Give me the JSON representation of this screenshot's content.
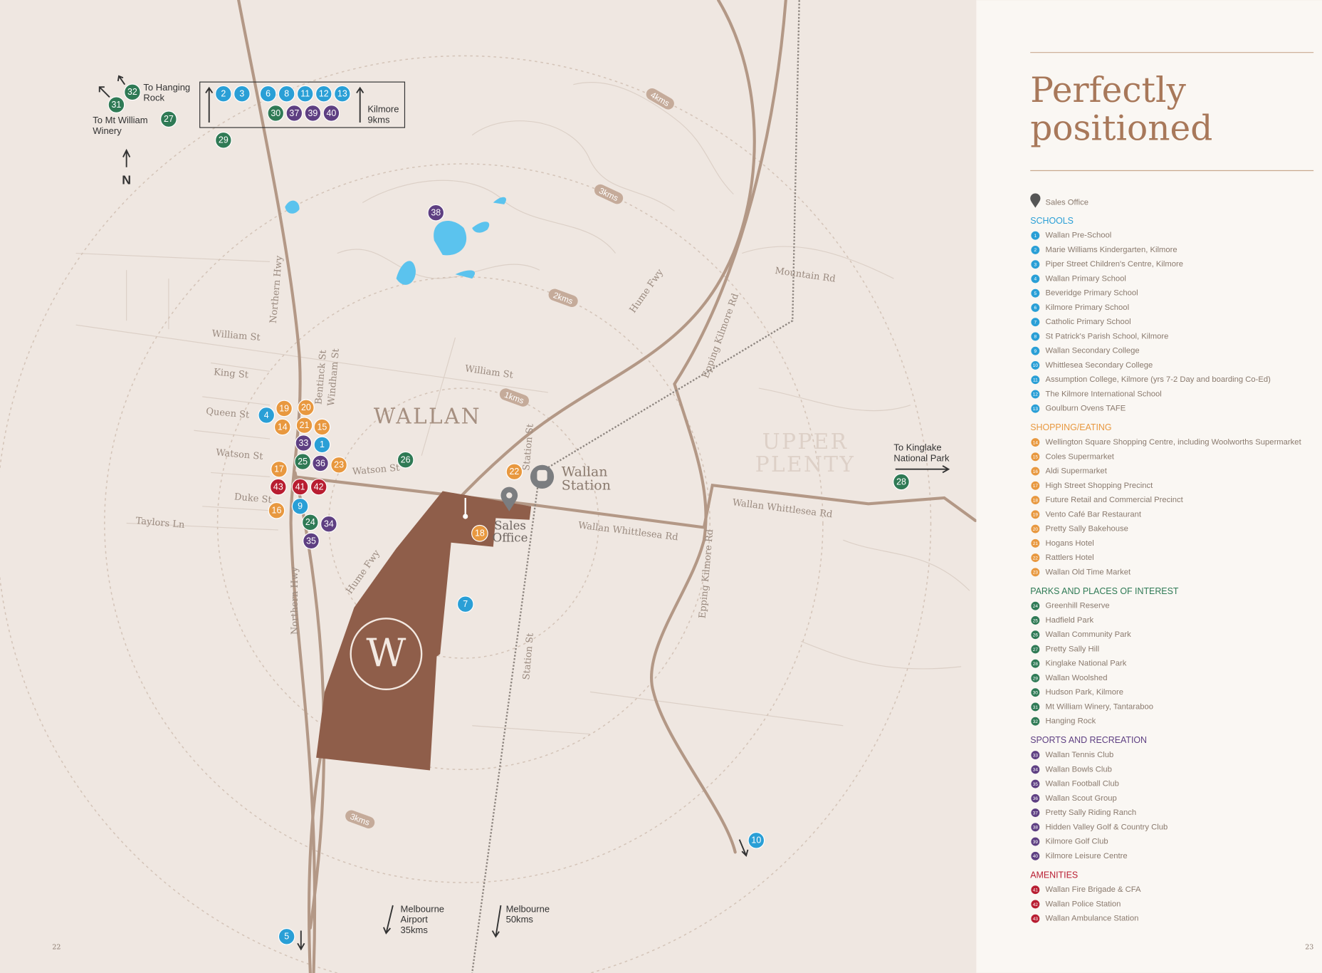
{
  "page_numbers": {
    "left": "22",
    "right": "23"
  },
  "title": [
    "Perfectly",
    "positioned"
  ],
  "legend": {
    "sales_office": "Sales Office",
    "sections": [
      {
        "heading": "SCHOOLS",
        "color": "#2a9fd6",
        "items": [
          {
            "number": "1",
            "label": "Wallan Pre-School"
          },
          {
            "number": "2",
            "label": "Marie Williams Kindergarten, Kilmore"
          },
          {
            "number": "3",
            "label": "Piper Street Children's Centre, Kilmore"
          },
          {
            "number": "4",
            "label": "Wallan Primary School"
          },
          {
            "number": "5",
            "label": "Beveridge Primary School"
          },
          {
            "number": "6",
            "label": "Kilmore Primary School"
          },
          {
            "number": "7",
            "label": "Catholic Primary School"
          },
          {
            "number": "8",
            "label": "St Patrick's Parish School, Kilmore"
          },
          {
            "number": "9",
            "label": "Wallan Secondary College"
          },
          {
            "number": "10",
            "label": "Whittlesea Secondary College"
          },
          {
            "number": "11",
            "label": "Assumption College, Kilmore (yrs 7-2 Day and boarding Co-Ed)"
          },
          {
            "number": "12",
            "label": "The Kilmore International School"
          },
          {
            "number": "13",
            "label": "Goulburn Ovens TAFE"
          }
        ]
      },
      {
        "heading": "SHOPPING/EATING",
        "color": "#e8983f",
        "items": [
          {
            "number": "14",
            "label": "Wellington Square Shopping Centre, including Woolworths Supermarket"
          },
          {
            "number": "15",
            "label": "Coles Supermarket"
          },
          {
            "number": "16",
            "label": "Aldi Supermarket"
          },
          {
            "number": "17",
            "label": "High Street Shopping Precinct"
          },
          {
            "number": "18",
            "label": "Future Retail and Commercial Precinct"
          },
          {
            "number": "19",
            "label": "Vento Café Bar Restaurant"
          },
          {
            "number": "20",
            "label": "Pretty Sally Bakehouse"
          },
          {
            "number": "21",
            "label": "Hogans Hotel"
          },
          {
            "number": "22",
            "label": "Rattlers Hotel"
          },
          {
            "number": "23",
            "label": "Wallan Old Time Market"
          }
        ]
      },
      {
        "heading": "PARKS AND PLACES OF INTEREST",
        "color": "#2f7a55",
        "items": [
          {
            "number": "24",
            "label": "Greenhill Reserve"
          },
          {
            "number": "25",
            "label": "Hadfield Park"
          },
          {
            "number": "26",
            "label": "Wallan Community Park"
          },
          {
            "number": "27",
            "label": "Pretty Sally Hill"
          },
          {
            "number": "28",
            "label": "Kinglake National Park"
          },
          {
            "number": "29",
            "label": "Wallan Woolshed"
          },
          {
            "number": "30",
            "label": "Hudson Park, Kilmore"
          },
          {
            "number": "31",
            "label": "Mt William Winery, Tantaraboo"
          },
          {
            "number": "32",
            "label": "Hanging Rock"
          }
        ]
      },
      {
        "heading": "SPORTS AND RECREATION",
        "color": "#5e3f82",
        "items": [
          {
            "number": "33",
            "label": "Wallan Tennis Club"
          },
          {
            "number": "34",
            "label": "Wallan Bowls Club"
          },
          {
            "number": "35",
            "label": "Wallan Football Club"
          },
          {
            "number": "36",
            "label": "Wallan Scout Group"
          },
          {
            "number": "37",
            "label": "Pretty Sally Riding Ranch"
          },
          {
            "number": "38",
            "label": "Hidden Valley Golf & Country Club"
          },
          {
            "number": "39",
            "label": "Kilmore Golf Club"
          },
          {
            "number": "40",
            "label": "Kilmore Leisure Centre"
          }
        ]
      },
      {
        "heading": "AMENITIES",
        "color": "#b81d31",
        "items": [
          {
            "number": "41",
            "label": "Wallan Fire Brigade & CFA"
          },
          {
            "number": "42",
            "label": "Wallan Police Station"
          },
          {
            "number": "43",
            "label": "Wallan Ambulance Station"
          }
        ]
      }
    ]
  },
  "map": {
    "logo": "W",
    "north": "N",
    "places": [
      [
        "WALLAN"
      ],
      [
        "UPPER",
        "PLENTY"
      ],
      [
        "Wallan",
        "Station"
      ],
      [
        "Sales",
        "Office"
      ]
    ],
    "roads": [
      "William St",
      "King St",
      "Queen St",
      "Watson St",
      "Duke St",
      "Taylors Ln",
      "Northern Hwy",
      "Northern Hwy",
      "Bentinck St",
      "Windham St",
      "Watson St",
      "William St",
      "Station St",
      "Station St",
      "Hume Fwy",
      "Hume Fwy",
      "Epping Kilmore Rd",
      "Epping Kilmore Rd",
      "Mountain Rd",
      "Wallan Whittlesea Rd",
      "Wallan Whittlesea Rd"
    ],
    "distances": [
      "4kms",
      "3kms",
      "2kms",
      "1kms",
      "3kms"
    ],
    "directions": [
      [
        "To Hanging",
        "Rock"
      ],
      [
        "To Mt William",
        "Winery"
      ],
      [
        "Kilmore",
        "9kms"
      ],
      [
        "To Kinglake",
        "National Park"
      ],
      [
        "Melbourne",
        "Airport",
        "35kms"
      ],
      [
        "Melbourne",
        "50kms"
      ]
    ],
    "markers": [
      "2",
      "3",
      "6",
      "8",
      "11",
      "12",
      "13",
      "30",
      "37",
      "39",
      "40",
      "32",
      "31",
      "27",
      "29",
      "38",
      "4",
      "19",
      "20",
      "14",
      "21",
      "15",
      "33",
      "1",
      "25",
      "36",
      "23",
      "26",
      "17",
      "43",
      "41",
      "42",
      "9",
      "16",
      "24",
      "34",
      "35",
      "22",
      "18",
      "7",
      "28",
      "10",
      "5"
    ]
  }
}
